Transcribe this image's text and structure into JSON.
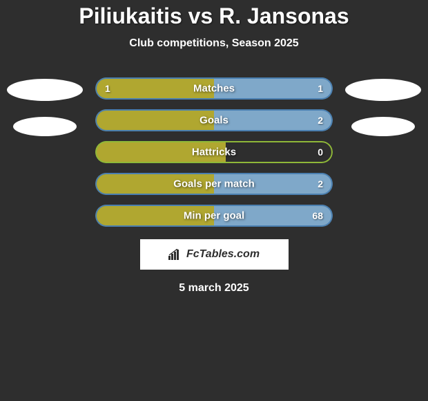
{
  "title": "Piliukaitis vs R. Jansonas",
  "subtitle": "Club competitions, Season 2025",
  "date": "5 march 2025",
  "background_color": "#2e2e2e",
  "colors": {
    "left_fill": "#b0a730",
    "right_fill": "#7fa8c9",
    "border_green": "#8fb838",
    "border_blue": "#4a7fb0",
    "text": "#ffffff",
    "ellipse": "#ffffff"
  },
  "stats": [
    {
      "label": "Matches",
      "left_value": "1",
      "right_value": "1",
      "left_pct": 50,
      "right_pct": 50
    },
    {
      "label": "Goals",
      "left_value": "",
      "right_value": "2",
      "left_pct": 50,
      "right_pct": 50
    },
    {
      "label": "Hattricks",
      "left_value": "",
      "right_value": "0",
      "left_pct": 55,
      "right_pct": 0
    },
    {
      "label": "Goals per match",
      "left_value": "",
      "right_value": "2",
      "left_pct": 50,
      "right_pct": 50
    },
    {
      "label": "Min per goal",
      "left_value": "",
      "right_value": "68",
      "left_pct": 50,
      "right_pct": 50
    }
  ],
  "logo": {
    "text": "FcTables.com"
  }
}
